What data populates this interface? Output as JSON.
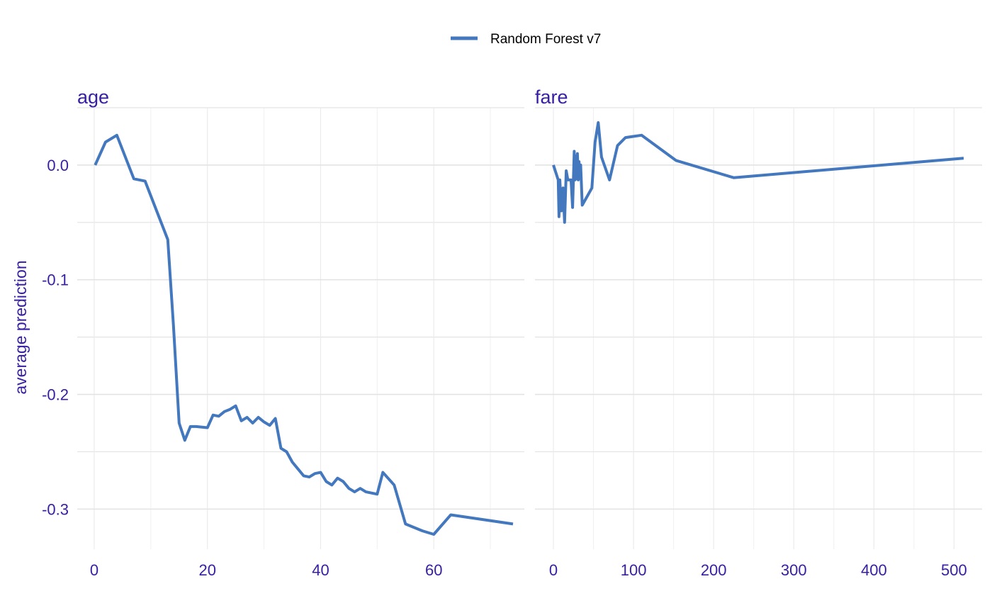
{
  "chart_data": {
    "type": "line",
    "legend": {
      "position": "top",
      "entries": [
        "Random Forest v7"
      ]
    },
    "ylabel": "average prediction",
    "ylim": [
      -0.335,
      0.05
    ],
    "yticks": [
      0.0,
      -0.1,
      -0.2,
      -0.3
    ],
    "ytick_labels": [
      "0.0",
      "-0.1",
      "-0.2",
      "-0.3"
    ],
    "grid": true,
    "colors": {
      "series": "#4378bf",
      "axis_text": "#371ea3",
      "grid": "#e3e3e3"
    },
    "panels": [
      {
        "title": "age",
        "xlim": [
          -3,
          76
        ],
        "xticks": [
          0,
          20,
          40,
          60
        ],
        "xtick_labels": [
          "0",
          "20",
          "40",
          "60"
        ],
        "series": [
          {
            "name": "Random Forest v7",
            "x": [
              0.17,
              2,
              4,
              7,
              9,
              13,
              14,
              15,
              16,
              17,
              18,
              20,
              21,
              22,
              23,
              24,
              25,
              26,
              27,
              28,
              29,
              30,
              31,
              32,
              33,
              34,
              35,
              36,
              37,
              38,
              39,
              40,
              41,
              42,
              43,
              44,
              45,
              46,
              47,
              48,
              50,
              51,
              53,
              55,
              58,
              60,
              63,
              74
            ],
            "y": [
              0.0,
              0.02,
              0.026,
              -0.012,
              -0.014,
              -0.065,
              -0.14,
              -0.225,
              -0.24,
              -0.228,
              -0.228,
              -0.229,
              -0.218,
              -0.219,
              -0.215,
              -0.213,
              -0.21,
              -0.223,
              -0.22,
              -0.225,
              -0.22,
              -0.224,
              -0.227,
              -0.221,
              -0.247,
              -0.25,
              -0.259,
              -0.265,
              -0.271,
              -0.272,
              -0.269,
              -0.268,
              -0.276,
              -0.279,
              -0.273,
              -0.276,
              -0.282,
              -0.285,
              -0.282,
              -0.285,
              -0.287,
              -0.268,
              -0.279,
              -0.313,
              -0.319,
              -0.322,
              -0.305,
              -0.313
            ]
          }
        ]
      },
      {
        "title": "fare",
        "xlim": [
          -23,
          535
        ],
        "xticks": [
          0,
          100,
          200,
          300,
          400,
          500
        ],
        "xtick_labels": [
          "0",
          "100",
          "200",
          "300",
          "400",
          "500"
        ],
        "series": [
          {
            "name": "Random Forest v7",
            "x": [
              0,
              6,
              7,
              8,
              10,
              12,
              14,
              16,
              18,
              20,
              22,
              24,
              26,
              27,
              28,
              29,
              30,
              31,
              32,
              33,
              34,
              36,
              40,
              48,
              52,
              56,
              60,
              70,
              80,
              90,
              110,
              153,
              225,
              512
            ],
            "y": [
              0.0,
              -0.013,
              -0.045,
              -0.013,
              -0.04,
              -0.02,
              -0.05,
              -0.005,
              -0.013,
              -0.013,
              -0.013,
              -0.037,
              0.012,
              -0.013,
              0.008,
              -0.012,
              0.01,
              -0.013,
              0.003,
              -0.012,
              0.0,
              -0.035,
              -0.03,
              -0.02,
              0.02,
              0.037,
              0.007,
              -0.013,
              0.017,
              0.024,
              0.026,
              0.004,
              -0.011,
              0.006
            ]
          }
        ]
      }
    ]
  }
}
